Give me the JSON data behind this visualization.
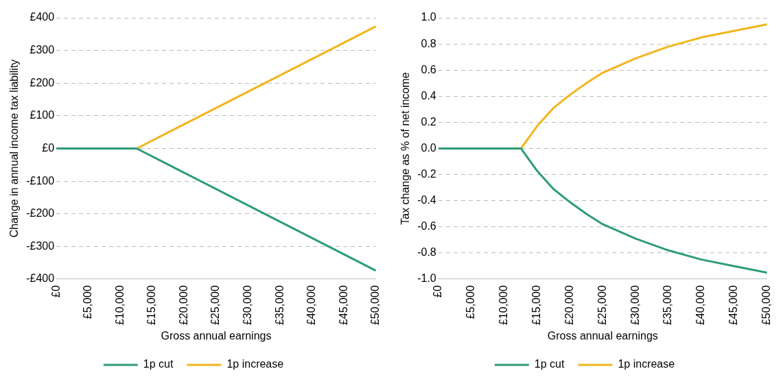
{
  "chart_data": [
    {
      "type": "line",
      "xlabel": "Gross annual earnings",
      "ylabel": "Change in annual income tax liability",
      "x": [
        0,
        12570,
        50000
      ],
      "series": [
        {
          "name": "1p cut",
          "color": "#2e9c78",
          "values": [
            0,
            0,
            -374
          ]
        },
        {
          "name": "1p increase",
          "color": "#f2b51d",
          "values": [
            0,
            0,
            374
          ]
        }
      ],
      "xlim": [
        0,
        50000
      ],
      "xticks": [
        {
          "value": 0,
          "label": "£0"
        },
        {
          "value": 5000,
          "label": "£5,000"
        },
        {
          "value": 10000,
          "label": "£10,000"
        },
        {
          "value": 15000,
          "label": "£15,000"
        },
        {
          "value": 20000,
          "label": "£20,000"
        },
        {
          "value": 25000,
          "label": "£25,000"
        },
        {
          "value": 30000,
          "label": "£30,000"
        },
        {
          "value": 35000,
          "label": "£35,000"
        },
        {
          "value": 40000,
          "label": "£40,000"
        },
        {
          "value": 45000,
          "label": "£45,000"
        },
        {
          "value": 50000,
          "label": "£50,000"
        }
      ],
      "ylim": [
        -400,
        400
      ],
      "yticks": [
        {
          "value": -400,
          "label": "-£400"
        },
        {
          "value": -300,
          "label": "-£300"
        },
        {
          "value": -200,
          "label": "-£200"
        },
        {
          "value": -100,
          "label": "-£100"
        },
        {
          "value": 0,
          "label": "£0"
        },
        {
          "value": 100,
          "label": "£100"
        },
        {
          "value": 200,
          "label": "£200"
        },
        {
          "value": 300,
          "label": "£300"
        },
        {
          "value": 400,
          "label": "£400"
        }
      ],
      "grid": "y",
      "legend": "bottom",
      "line_style": "solid"
    },
    {
      "type": "line",
      "xlabel": "Gross annual earnings",
      "ylabel": "Tax change as % of net income",
      "x": [
        0,
        12570,
        15000,
        17500,
        20000,
        22500,
        25000,
        30000,
        35000,
        40000,
        45000,
        50000
      ],
      "series": [
        {
          "name": "1p cut",
          "color": "#2e9c78",
          "values": [
            0,
            0,
            -0.17,
            -0.31,
            -0.41,
            -0.5,
            -0.58,
            -0.69,
            -0.78,
            -0.85,
            -0.9,
            -0.95
          ]
        },
        {
          "name": "1p increase",
          "color": "#f2b51d",
          "values": [
            0,
            0,
            0.17,
            0.31,
            0.41,
            0.5,
            0.58,
            0.69,
            0.78,
            0.85,
            0.9,
            0.95
          ]
        }
      ],
      "xlim": [
        0,
        50000
      ],
      "xticks": [
        {
          "value": 0,
          "label": "£0"
        },
        {
          "value": 5000,
          "label": "£5,000"
        },
        {
          "value": 10000,
          "label": "£10,000"
        },
        {
          "value": 15000,
          "label": "£15,000"
        },
        {
          "value": 20000,
          "label": "£20,000"
        },
        {
          "value": 25000,
          "label": "£25,000"
        },
        {
          "value": 30000,
          "label": "£30,000"
        },
        {
          "value": 35000,
          "label": "£35,000"
        },
        {
          "value": 40000,
          "label": "£40,000"
        },
        {
          "value": 45000,
          "label": "£45,000"
        },
        {
          "value": 50000,
          "label": "£50,000"
        }
      ],
      "ylim": [
        -1,
        1
      ],
      "yticks": [
        {
          "value": -1,
          "label": "-1.0"
        },
        {
          "value": -0.8,
          "label": "-0.8"
        },
        {
          "value": -0.6,
          "label": "-0.6"
        },
        {
          "value": -0.4,
          "label": "-0.4"
        },
        {
          "value": -0.2,
          "label": "-0.2"
        },
        {
          "value": 0,
          "label": "0.0"
        },
        {
          "value": 0.2,
          "label": "0.2"
        },
        {
          "value": 0.4,
          "label": "0.4"
        },
        {
          "value": 0.6,
          "label": "0.6"
        },
        {
          "value": 0.8,
          "label": "0.8"
        },
        {
          "value": 1,
          "label": "1.0"
        }
      ],
      "grid": "y",
      "legend": "bottom",
      "line_style": "solid"
    }
  ]
}
